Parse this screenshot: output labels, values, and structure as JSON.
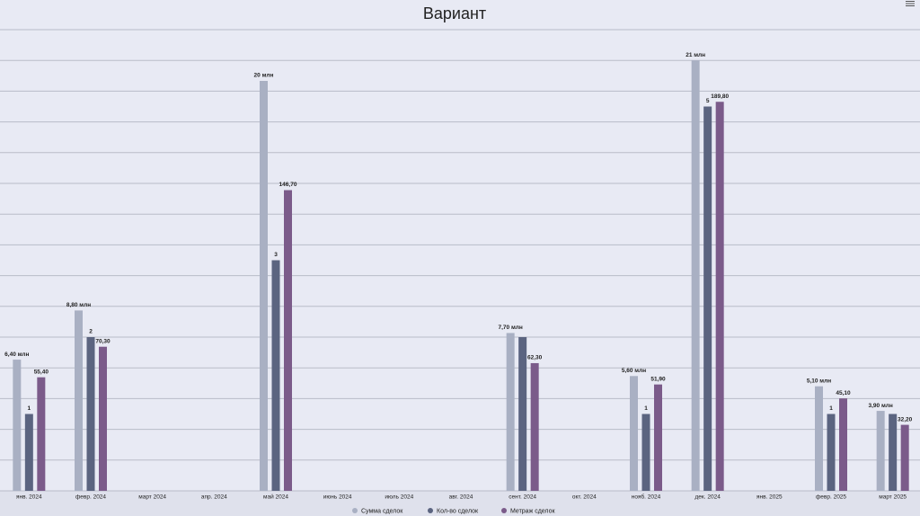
{
  "chart_data": {
    "type": "bar",
    "title": "Вариант",
    "categories": [
      "янв. 2024",
      "февр. 2024",
      "март 2024",
      "апр. 2024",
      "май 2024",
      "июнь 2024",
      "июль 2024",
      "авг. 2024",
      "сент. 2024",
      "окт. 2024",
      "нояб. 2024",
      "дек. 2024",
      "янв. 2025",
      "февр. 2025",
      "март 2025"
    ],
    "grid": true,
    "series": [
      {
        "name": "Сумма сделок",
        "color": "#a9b0c3",
        "ylim": [
          0,
          22.5
        ],
        "values": [
          6.4,
          8.8,
          null,
          null,
          20,
          null,
          null,
          null,
          7.7,
          null,
          5.6,
          21,
          null,
          5.1,
          3.9
        ],
        "value_labels": [
          "6,40 млн",
          "8,80 млн",
          null,
          null,
          "20 млн",
          null,
          null,
          null,
          "7,70 млн",
          null,
          "5,60 млн",
          "21 млн",
          null,
          "5,10 млн",
          "3,90 млн"
        ]
      },
      {
        "name": "Кол-во сделок",
        "color": "#5b6480",
        "ylim": [
          0,
          6
        ],
        "values": [
          1,
          2,
          null,
          null,
          3,
          null,
          null,
          null,
          2,
          null,
          1,
          5,
          null,
          1,
          1
        ],
        "value_labels": [
          "1",
          "2",
          null,
          null,
          "3",
          null,
          null,
          null,
          null,
          null,
          "1",
          "5",
          null,
          "1",
          null
        ]
      },
      {
        "name": "Метраж сделок",
        "color": "#7b5b8a",
        "ylim": [
          0,
          225
        ],
        "values": [
          55.4,
          70.3,
          null,
          null,
          146.7,
          null,
          null,
          null,
          62.3,
          null,
          51.9,
          189.8,
          null,
          45.1,
          32.2
        ],
        "value_labels": [
          "55,40",
          "70,30",
          null,
          null,
          "146,70",
          null,
          null,
          null,
          "62,30",
          null,
          "51,90",
          "189,80",
          null,
          "45,10",
          "32,20"
        ]
      }
    ]
  }
}
